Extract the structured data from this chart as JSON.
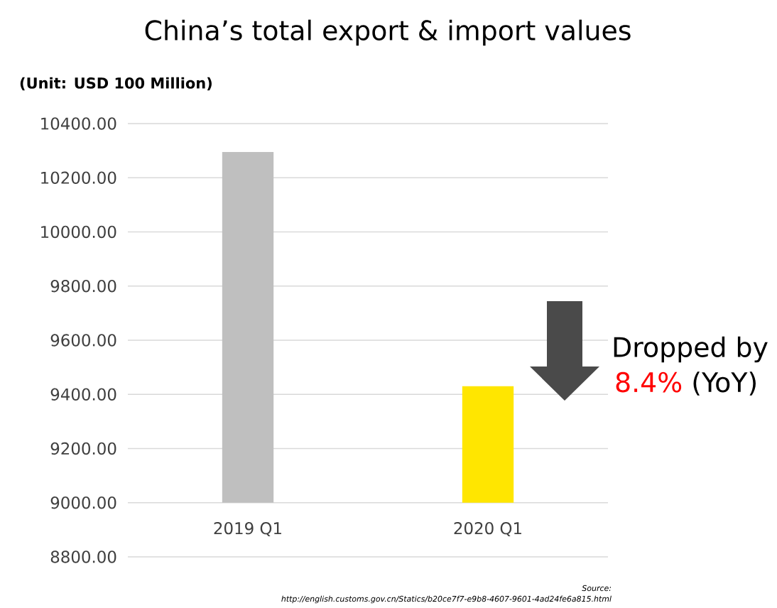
{
  "chart_data": {
    "type": "bar",
    "title": "China’s total export & import values",
    "subtitle": "(Unit: USD 100 Million)",
    "categories": [
      "2019 Q1",
      "2020 Q1"
    ],
    "values": [
      1295,
      430
    ],
    "base": [
      9000,
      9000
    ],
    "colors": [
      "#bfbfbf",
      "#ffe600"
    ],
    "ylim": [
      8800,
      10400
    ],
    "yticks": [
      {
        "value": 8800,
        "label": "8800.00"
      },
      {
        "value": 9000,
        "label": "9000.00"
      },
      {
        "value": 9200,
        "label": "9200.00"
      },
      {
        "value": 9400,
        "label": "9400.00"
      },
      {
        "value": 9600,
        "label": "9600.00"
      },
      {
        "value": 9800,
        "label": "9800.00"
      },
      {
        "value": 10000,
        "label": "10000.00"
      },
      {
        "value": 10200,
        "label": "10200.00"
      },
      {
        "value": 10400,
        "label": "10400.00"
      }
    ],
    "grid": "y",
    "annotations": [
      "Dropped by",
      "8.4%",
      "(YoY)",
      "Source:",
      "http://english.customs.gov.cn/Statics/b20ce7f7-e9b8-4607-9601-4ad24fe6a815.html"
    ]
  }
}
